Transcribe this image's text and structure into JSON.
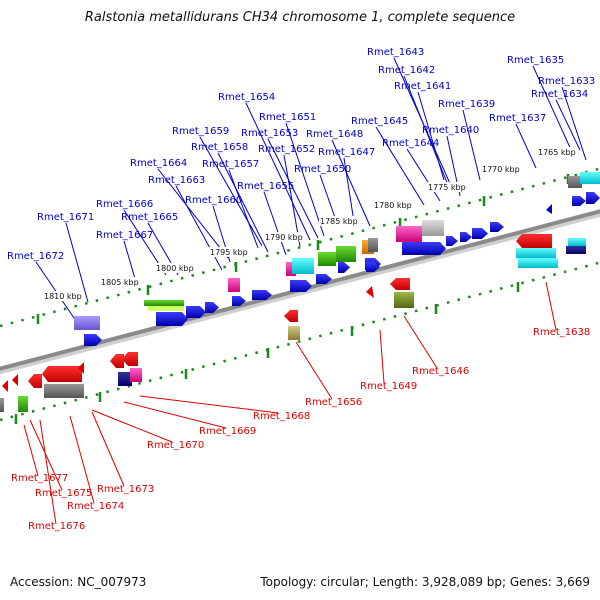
{
  "title": "Ralstonia metallidurans CH34 chromosome 1, complete sequence",
  "accession": "Accession: NC_007973",
  "summary": "Topology: circular; Length: 3,928,089 bp; Genes: 3,669",
  "colors": {
    "forward_label": "#0000cc",
    "reverse_label": "#dd0000",
    "backbone": "#8a8a8a",
    "tick": "#1a8a1a"
  },
  "kbp_ticks": [
    "1765 kbp",
    "1770 kbp",
    "1775 kbp",
    "1780 kbp",
    "1785 kbp",
    "1790 kbp",
    "1795 kbp",
    "1800 kbp",
    "1805 kbp",
    "1810 kbp"
  ],
  "forward_labels": [
    "Rmet_1635",
    "Rmet_1633",
    "Rmet_1634",
    "Rmet_1643",
    "Rmet_1642",
    "Rmet_1641",
    "Rmet_1639",
    "Rmet_1637",
    "Rmet_1654",
    "Rmet_1645",
    "Rmet_1640",
    "Rmet_1651",
    "Rmet_1653",
    "Rmet_1648",
    "Rmet_1659",
    "Rmet_1644",
    "Rmet_1658",
    "Rmet_1652",
    "Rmet_1647",
    "Rmet_1664",
    "Rmet_1657",
    "Rmet_1650",
    "Rmet_1663",
    "Rmet_1655",
    "Rmet_1666",
    "Rmet_1660",
    "Rmet_1671",
    "Rmet_1665",
    "Rmet_1667",
    "Rmet_1672"
  ],
  "reverse_labels": [
    "Rmet_1638",
    "Rmet_1646",
    "Rmet_1649",
    "Rmet_1656",
    "Rmet_1668",
    "Rmet_1669",
    "Rmet_1670",
    "Rmet_1673",
    "Rmet_1677",
    "Rmet_1675",
    "Rmet_1674",
    "Rmet_1676"
  ]
}
